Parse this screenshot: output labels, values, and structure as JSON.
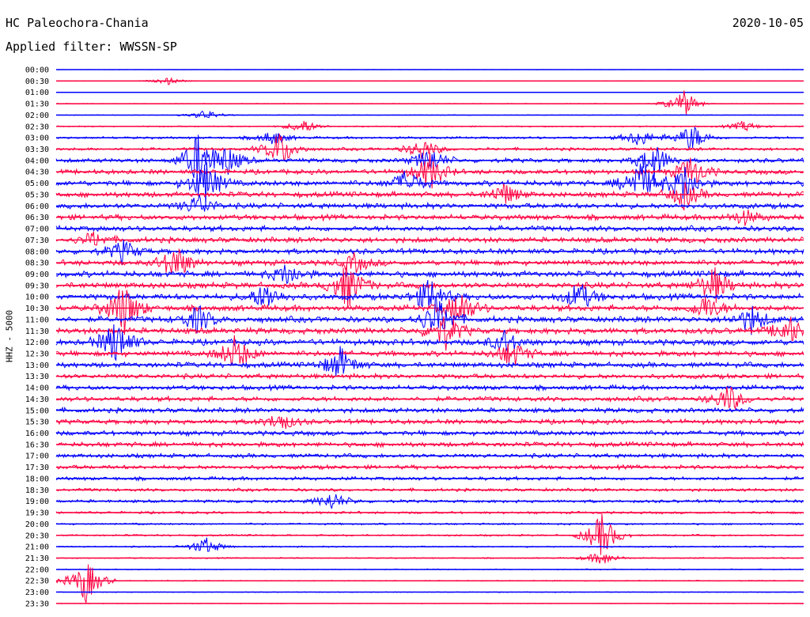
{
  "header": {
    "station": "HC Paleochora-Chania",
    "date": "2020-10-05",
    "filter": "Applied filter: WWSSN-SP"
  },
  "chart_data": {
    "type": "line",
    "title": "HC Paleochora-Chania",
    "ylabel": "HHZ - 5000",
    "row_labels": [
      "00:00",
      "00:30",
      "01:00",
      "01:30",
      "02:00",
      "02:30",
      "03:00",
      "03:30",
      "04:00",
      "04:30",
      "05:00",
      "05:30",
      "06:00",
      "06:30",
      "07:00",
      "07:30",
      "08:00",
      "08:30",
      "09:00",
      "09:30",
      "10:00",
      "10:30",
      "11:00",
      "11:30",
      "12:00",
      "12:30",
      "13:00",
      "13:30",
      "14:00",
      "14:30",
      "15:00",
      "15:30",
      "16:00",
      "16:30",
      "17:00",
      "17:30",
      "18:00",
      "18:30",
      "19:00",
      "19:30",
      "20:00",
      "20:30",
      "21:00",
      "21:30",
      "22:00",
      "22:30",
      "23:00",
      "23:30"
    ],
    "row_colors": [
      "#0000ff",
      "#ff0040"
    ],
    "row_noise_level": [
      0.02,
      0.02,
      0.03,
      0.05,
      0.05,
      0.1,
      0.2,
      0.25,
      0.35,
      0.4,
      0.45,
      0.45,
      0.45,
      0.45,
      0.45,
      0.45,
      0.45,
      0.45,
      0.5,
      0.5,
      0.5,
      0.5,
      0.5,
      0.5,
      0.5,
      0.45,
      0.45,
      0.4,
      0.4,
      0.4,
      0.4,
      0.4,
      0.4,
      0.4,
      0.35,
      0.35,
      0.3,
      0.25,
      0.25,
      0.2,
      0.15,
      0.15,
      0.12,
      0.1,
      0.08,
      0.08,
      0.06,
      0.05
    ],
    "bursts": [
      {
        "row": 1,
        "t": 0.15,
        "a": 0.4
      },
      {
        "row": 3,
        "t": 0.84,
        "a": 1.5
      },
      {
        "row": 4,
        "t": 0.2,
        "a": 0.6
      },
      {
        "row": 5,
        "t": 0.33,
        "a": 0.8
      },
      {
        "row": 5,
        "t": 0.92,
        "a": 0.6
      },
      {
        "row": 6,
        "t": 0.29,
        "a": 0.8
      },
      {
        "row": 6,
        "t": 0.78,
        "a": 1.0
      },
      {
        "row": 6,
        "t": 0.85,
        "a": 1.6
      },
      {
        "row": 7,
        "t": 0.3,
        "a": 2.0
      },
      {
        "row": 7,
        "t": 0.49,
        "a": 1.2
      },
      {
        "row": 8,
        "t": 0.19,
        "a": 3.0
      },
      {
        "row": 8,
        "t": 0.23,
        "a": 1.5
      },
      {
        "row": 8,
        "t": 0.5,
        "a": 1.5
      },
      {
        "row": 8,
        "t": 0.8,
        "a": 2.0
      },
      {
        "row": 9,
        "t": 0.5,
        "a": 2.0
      },
      {
        "row": 9,
        "t": 0.85,
        "a": 1.8
      },
      {
        "row": 10,
        "t": 0.2,
        "a": 2.5
      },
      {
        "row": 10,
        "t": 0.47,
        "a": 1.5
      },
      {
        "row": 10,
        "t": 0.78,
        "a": 2.5
      },
      {
        "row": 10,
        "t": 0.84,
        "a": 2.0
      },
      {
        "row": 11,
        "t": 0.6,
        "a": 1.2
      },
      {
        "row": 11,
        "t": 0.84,
        "a": 1.5
      },
      {
        "row": 12,
        "t": 0.19,
        "a": 1.2
      },
      {
        "row": 13,
        "t": 0.92,
        "a": 0.8
      },
      {
        "row": 15,
        "t": 0.05,
        "a": 0.8
      },
      {
        "row": 16,
        "t": 0.09,
        "a": 1.2
      },
      {
        "row": 17,
        "t": 0.16,
        "a": 2.0
      },
      {
        "row": 17,
        "t": 0.4,
        "a": 1.0
      },
      {
        "row": 18,
        "t": 0.31,
        "a": 1.2
      },
      {
        "row": 19,
        "t": 0.39,
        "a": 2.5
      },
      {
        "row": 19,
        "t": 0.88,
        "a": 2.0
      },
      {
        "row": 20,
        "t": 0.28,
        "a": 1.5
      },
      {
        "row": 20,
        "t": 0.5,
        "a": 2.0
      },
      {
        "row": 20,
        "t": 0.7,
        "a": 1.6
      },
      {
        "row": 21,
        "t": 0.09,
        "a": 3.0
      },
      {
        "row": 21,
        "t": 0.54,
        "a": 2.0
      },
      {
        "row": 21,
        "t": 0.87,
        "a": 1.4
      },
      {
        "row": 22,
        "t": 0.19,
        "a": 1.5
      },
      {
        "row": 22,
        "t": 0.51,
        "a": 2.5
      },
      {
        "row": 22,
        "t": 0.93,
        "a": 1.5
      },
      {
        "row": 23,
        "t": 0.52,
        "a": 2.0
      },
      {
        "row": 23,
        "t": 0.98,
        "a": 1.6
      },
      {
        "row": 24,
        "t": 0.08,
        "a": 2.5
      },
      {
        "row": 24,
        "t": 0.6,
        "a": 1.2
      },
      {
        "row": 25,
        "t": 0.24,
        "a": 2.0
      },
      {
        "row": 25,
        "t": 0.61,
        "a": 1.5
      },
      {
        "row": 26,
        "t": 0.38,
        "a": 1.8
      },
      {
        "row": 29,
        "t": 0.9,
        "a": 1.5
      },
      {
        "row": 31,
        "t": 0.3,
        "a": 1.0
      },
      {
        "row": 38,
        "t": 0.37,
        "a": 1.0
      },
      {
        "row": 41,
        "t": 0.73,
        "a": 2.5
      },
      {
        "row": 42,
        "t": 0.2,
        "a": 1.0
      },
      {
        "row": 43,
        "t": 0.73,
        "a": 0.8
      },
      {
        "row": 45,
        "t": 0.04,
        "a": 2.5
      }
    ]
  }
}
